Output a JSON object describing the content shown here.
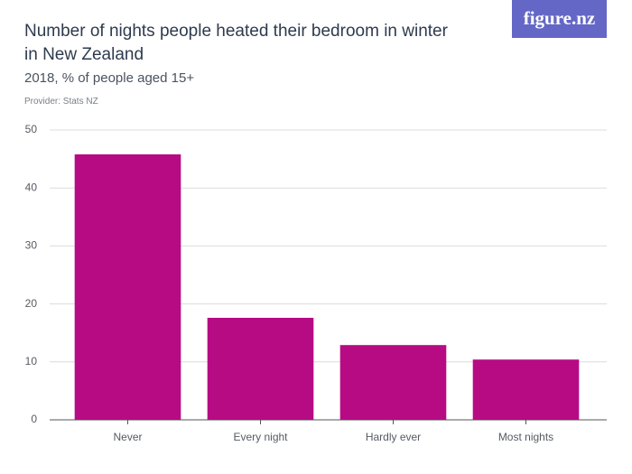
{
  "chart_data": {
    "type": "bar",
    "title": "Number of nights people heated their bedroom in winter in New Zealand",
    "subtitle": "2018, % of people aged 15+",
    "provider": "Provider: Stats NZ",
    "logo": "figure.nz",
    "categories": [
      "Never",
      "Every night",
      "Hardly ever",
      "Most nights"
    ],
    "values": [
      45.8,
      17.6,
      12.9,
      10.4
    ],
    "color": "#b70b84",
    "ylim": [
      0,
      50
    ],
    "yticks": [
      0,
      10,
      20,
      30,
      40,
      50
    ],
    "grid": true
  }
}
